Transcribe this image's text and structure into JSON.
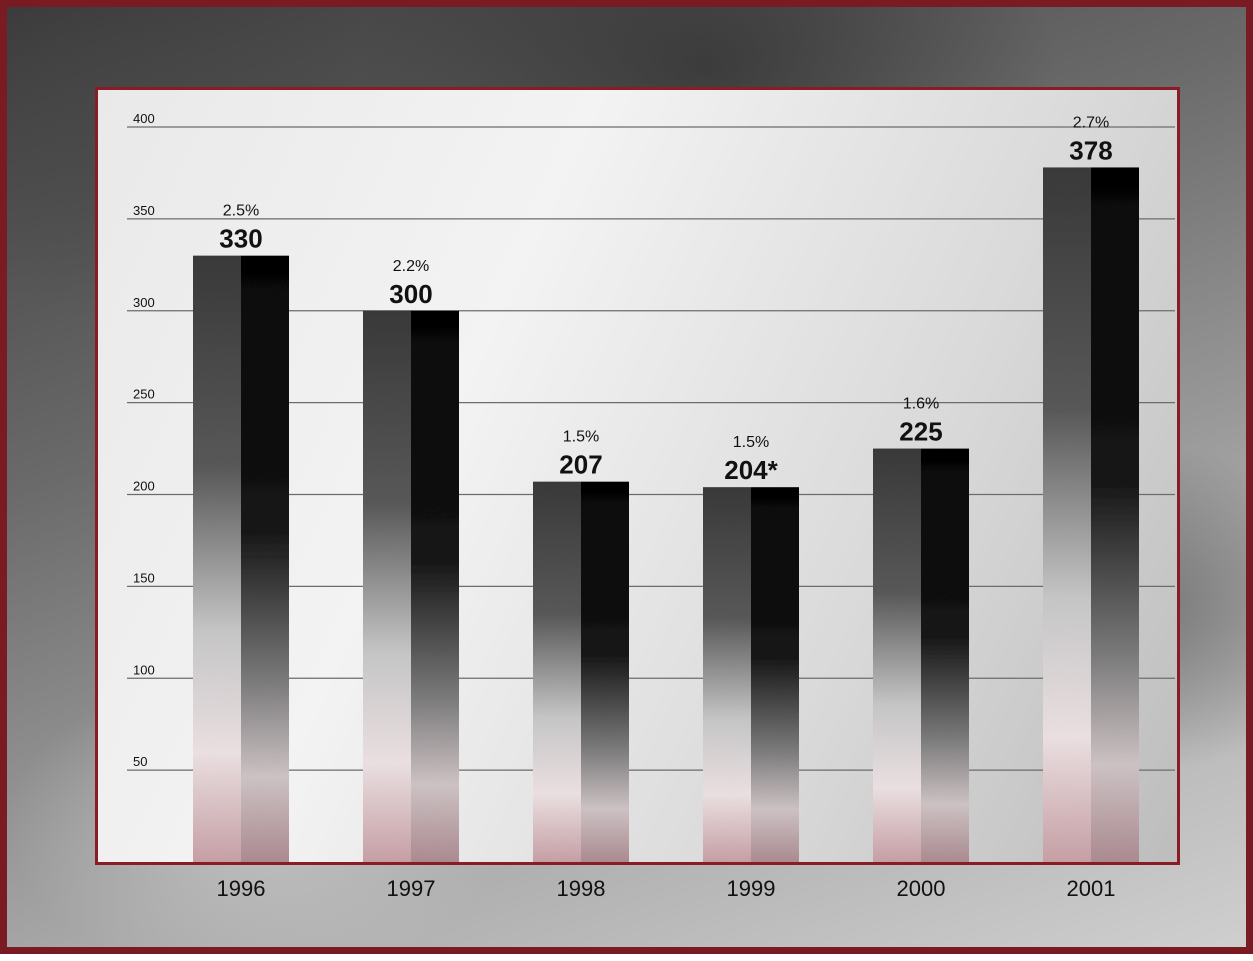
{
  "chart_data": {
    "type": "bar",
    "categories": [
      "1996",
      "1997",
      "1998",
      "1999",
      "2000",
      "2001"
    ],
    "values": [
      330,
      300,
      207,
      204,
      225,
      378
    ],
    "value_labels": [
      "330",
      "300",
      "207",
      "204*",
      "225",
      "378"
    ],
    "percent_labels": [
      "2.5%",
      "2.2%",
      "1.5%",
      "1.5%",
      "1.6%",
      "2.7%"
    ],
    "y_ticks": [
      50,
      100,
      150,
      200,
      250,
      300,
      350,
      400
    ],
    "ylim": [
      0,
      400
    ],
    "grid": true,
    "title": "",
    "xlabel": "",
    "ylabel": ""
  },
  "colors": {
    "frame_border": "#7a1a22",
    "plot_border": "#8a1c26"
  }
}
